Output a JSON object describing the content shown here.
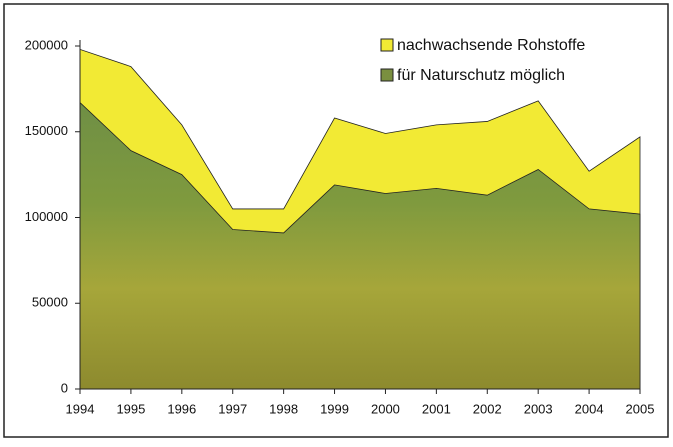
{
  "chart_data": {
    "type": "area",
    "categories": [
      "1994",
      "1995",
      "1996",
      "1997",
      "1998",
      "1999",
      "2000",
      "2001",
      "2002",
      "2003",
      "2004",
      "2005"
    ],
    "series": [
      {
        "name": "nachwachsende Rohstoffe",
        "color": "#f2ea34",
        "values": [
          198000,
          188000,
          154000,
          105000,
          105000,
          158000,
          149000,
          154000,
          156000,
          168000,
          127000,
          147000
        ]
      },
      {
        "name": "für Naturschutz möglich",
        "color": "#7a8f3f",
        "values": [
          167000,
          139000,
          125000,
          93000,
          91000,
          119000,
          114000,
          117000,
          113000,
          128000,
          105000,
          102000
        ]
      }
    ],
    "ylim": [
      0,
      200000
    ],
    "yticks": [
      0,
      50000,
      100000,
      150000,
      200000
    ],
    "legend": "top-right"
  }
}
